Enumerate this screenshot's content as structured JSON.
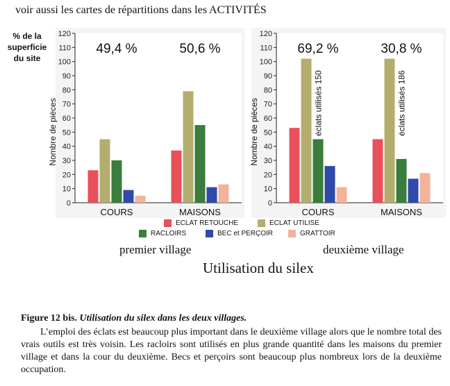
{
  "top_note": "voir aussi les cartes de répartitions dans les ACTIVITÉS",
  "y_side_label": "% de la superficie du site",
  "legend": [
    {
      "key": "eclat_retouche",
      "label": "ECLAT RETOUCHE",
      "color": "#e8505b"
    },
    {
      "key": "eclat_utilise",
      "label": "ECLAT UTILISE",
      "color": "#b3ae6e"
    },
    {
      "key": "racloirs",
      "label": "RACLOIRS",
      "color": "#3a7d3c"
    },
    {
      "key": "bec_percoir",
      "label": "BEC et PERÇOIR",
      "color": "#2f4aa8"
    },
    {
      "key": "grattoir",
      "label": "GRATTOIR",
      "color": "#f2b39a"
    }
  ],
  "village_labels": [
    "premier village",
    "deuxième village"
  ],
  "main_title": "Utilisation du silex",
  "caption": {
    "title": "Figure 12 bis.",
    "title_italic": "Utilisation du silex dans les deux villages.",
    "body": "L’emploi des éclats est beaucoup plus important dans le deuxième village alors que le nombre total des vrais outils est très voisin. Les racloirs sont utilisés en plus grande quantité dans les maisons du premier village et dans la cour du deuxième. Becs et perçoirs sont beaucoup plus nombreux lors de la deuxième occupation."
  },
  "chart_data": [
    {
      "type": "bar",
      "ylabel": "Nombre de pièces",
      "ylim": [
        0,
        120
      ],
      "yticks": [
        0,
        10,
        20,
        30,
        40,
        50,
        60,
        70,
        80,
        90,
        100,
        110,
        120
      ],
      "categories": [
        "COURS",
        "MAISONS"
      ],
      "percent_labels": [
        "49,4 %",
        "50,6 %"
      ],
      "series": [
        {
          "name": "ECLAT RETOUCHE",
          "color": "#e8505b",
          "values": [
            23,
            37
          ]
        },
        {
          "name": "ECLAT UTILISE",
          "color": "#b3ae6e",
          "values": [
            45,
            79
          ]
        },
        {
          "name": "RACLOIRS",
          "color": "#3a7d3c",
          "values": [
            30,
            55
          ]
        },
        {
          "name": "BEC et PERÇOIR",
          "color": "#2f4aa8",
          "values": [
            9,
            11
          ]
        },
        {
          "name": "GRATTOIR",
          "color": "#f2b39a",
          "values": [
            5,
            13
          ]
        }
      ],
      "annotations": []
    },
    {
      "type": "bar",
      "ylabel": "Nombre de pièces",
      "ylim": [
        0,
        120
      ],
      "yticks": [
        0,
        10,
        20,
        30,
        40,
        50,
        60,
        70,
        80,
        90,
        100,
        110,
        120
      ],
      "categories": [
        "COURS",
        "MAISONS"
      ],
      "percent_labels": [
        "69,2 %",
        "30,8 %"
      ],
      "series": [
        {
          "name": "ECLAT RETOUCHE",
          "color": "#e8505b",
          "values": [
            53,
            45
          ]
        },
        {
          "name": "ECLAT UTILISE",
          "color": "#b3ae6e",
          "values": [
            102,
            102
          ]
        },
        {
          "name": "RACLOIRS",
          "color": "#3a7d3c",
          "values": [
            45,
            31
          ]
        },
        {
          "name": "BEC et PERÇOIR",
          "color": "#2f4aa8",
          "values": [
            26,
            17
          ]
        },
        {
          "name": "GRATTOIR",
          "color": "#f2b39a",
          "values": [
            11,
            21
          ]
        }
      ],
      "annotations": [
        "éclats utilisés 150",
        "éclats utilisés 186"
      ]
    }
  ]
}
